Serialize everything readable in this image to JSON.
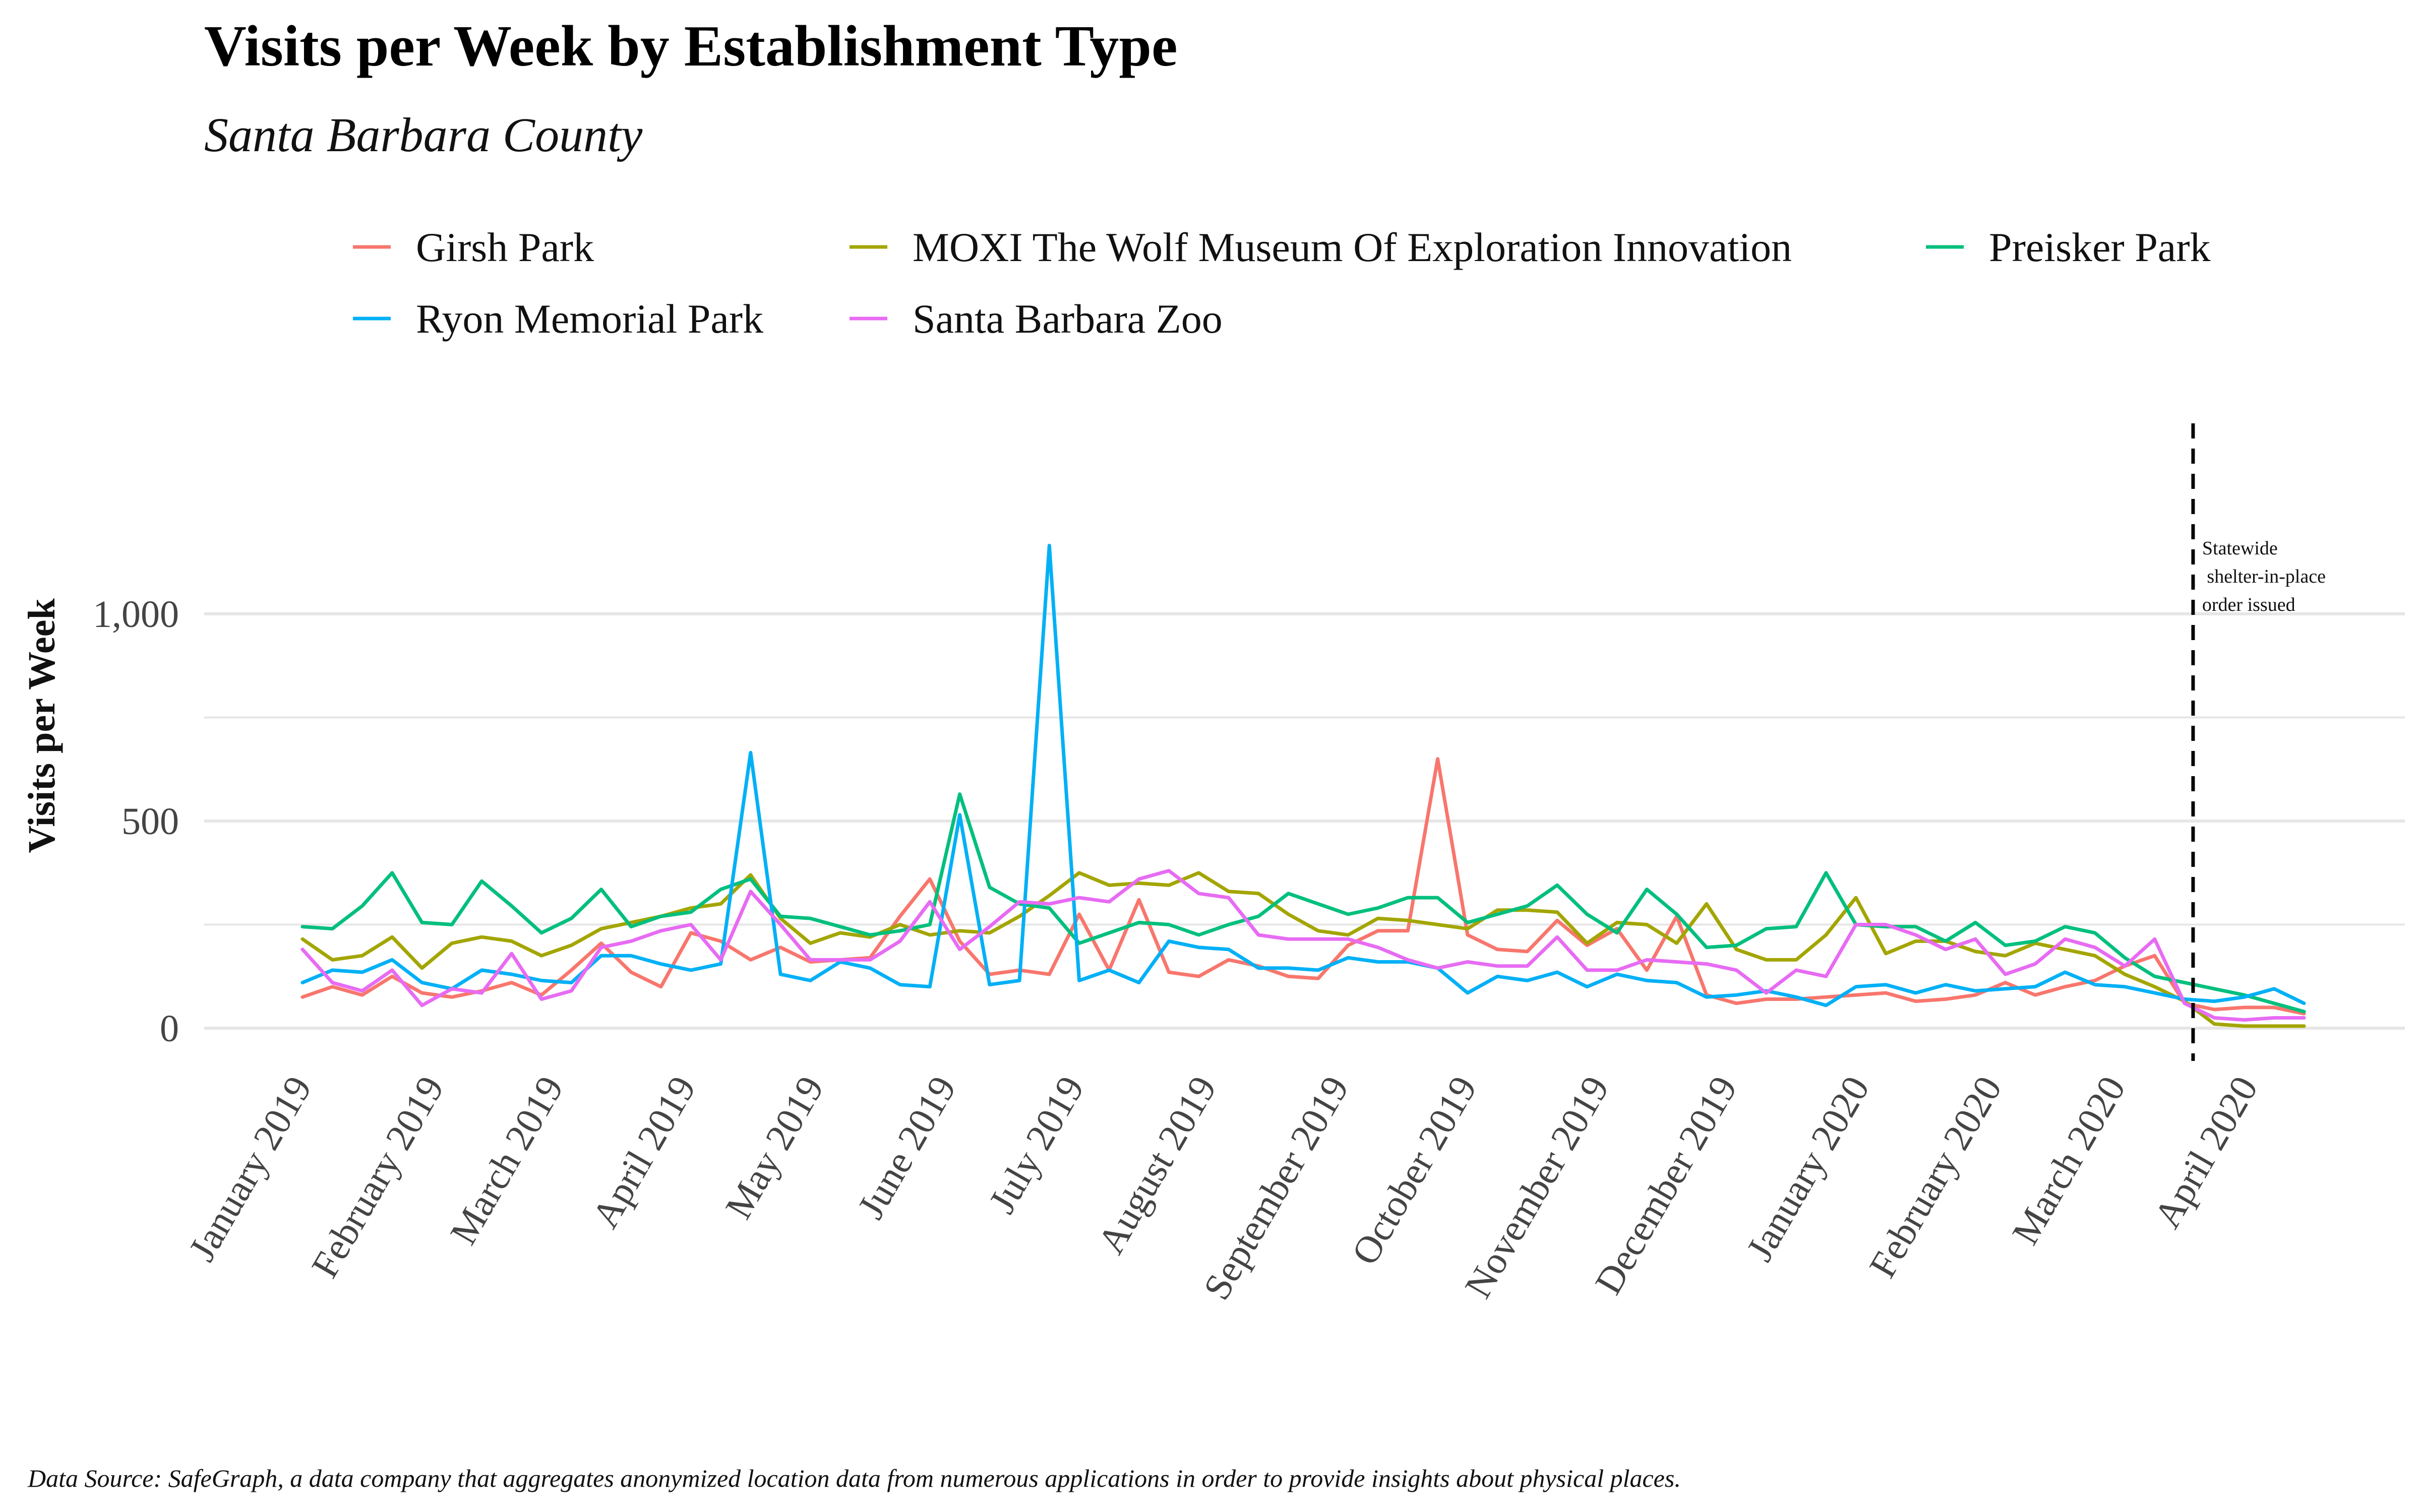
{
  "chart_data": {
    "type": "line",
    "title": "Visits per Week by Establishment Type",
    "subtitle": "Santa Barbara County",
    "ylabel": "Visits per Week",
    "xlabel": "",
    "ylim": [
      -45,
      1240
    ],
    "yticks": [
      0,
      500,
      1000
    ],
    "ytick_labels": [
      "0",
      "500",
      "1,000"
    ],
    "grid": true,
    "legend_position": "top",
    "x_start": "2019-01-01",
    "week_count": 68,
    "month_labels": [
      "January 2019",
      "February 2019",
      "March 2019",
      "April 2019",
      "May 2019",
      "June 2019",
      "July 2019",
      "August 2019",
      "September 2019",
      "October 2019",
      "November 2019",
      "December 2019",
      "January 2020",
      "February 2020",
      "March 2020",
      "April 2020"
    ],
    "month_positions": [
      "2019-01-01",
      "2019-02-01",
      "2019-03-01",
      "2019-04-01",
      "2019-05-01",
      "2019-06-01",
      "2019-07-01",
      "2019-08-01",
      "2019-09-01",
      "2019-10-01",
      "2019-11-01",
      "2019-12-01",
      "2020-01-01",
      "2020-02-01",
      "2020-03-01",
      "2020-04-01"
    ],
    "annotation": {
      "x": "2020-03-19",
      "lines": [
        "Statewide",
        " shelter-in-place",
        "order issued"
      ]
    },
    "series": [
      {
        "name": "Girsh Park",
        "color": "#F8766D",
        "values": [
          75,
          100,
          80,
          125,
          85,
          75,
          90,
          110,
          80,
          140,
          205,
          135,
          100,
          230,
          210,
          165,
          195,
          160,
          165,
          170,
          270,
          360,
          210,
          130,
          140,
          130,
          275,
          140,
          310,
          135,
          125,
          165,
          150,
          125,
          120,
          200,
          235,
          235,
          650,
          225,
          190,
          185,
          260,
          200,
          240,
          140,
          270,
          80,
          60,
          70,
          70,
          75,
          80,
          85,
          65,
          70,
          80,
          110,
          80,
          100,
          115,
          150,
          175,
          60,
          45,
          50,
          50,
          35
        ]
      },
      {
        "name": "MOXI The Wolf Museum Of Exploration Innovation",
        "color": "#A3A500",
        "values": [
          215,
          165,
          175,
          220,
          145,
          205,
          220,
          210,
          175,
          200,
          240,
          255,
          270,
          290,
          300,
          370,
          265,
          205,
          230,
          220,
          250,
          225,
          235,
          230,
          270,
          320,
          375,
          345,
          350,
          345,
          375,
          330,
          325,
          275,
          235,
          225,
          265,
          260,
          250,
          240,
          285,
          285,
          280,
          205,
          255,
          250,
          205,
          300,
          190,
          165,
          165,
          225,
          315,
          180,
          210,
          210,
          185,
          175,
          205,
          190,
          175,
          130,
          100,
          65,
          10,
          5,
          5,
          5
        ]
      },
      {
        "name": "Preisker Park",
        "color": "#00BF7D",
        "values": [
          245,
          240,
          295,
          375,
          255,
          250,
          355,
          295,
          230,
          265,
          335,
          245,
          270,
          280,
          335,
          360,
          270,
          265,
          245,
          225,
          235,
          250,
          565,
          340,
          300,
          290,
          205,
          230,
          255,
          250,
          225,
          250,
          270,
          325,
          300,
          275,
          290,
          315,
          315,
          255,
          275,
          295,
          345,
          275,
          230,
          335,
          275,
          195,
          200,
          240,
          245,
          375,
          250,
          245,
          245,
          210,
          255,
          200,
          210,
          245,
          230,
          170,
          125,
          110,
          95,
          80,
          60,
          40
        ]
      },
      {
        "name": "Ryon Memorial Park",
        "color": "#00B0F6",
        "values": [
          110,
          140,
          135,
          165,
          110,
          95,
          140,
          130,
          115,
          110,
          175,
          175,
          155,
          140,
          155,
          665,
          130,
          115,
          160,
          145,
          105,
          100,
          515,
          105,
          115,
          1165,
          115,
          140,
          110,
          210,
          195,
          190,
          145,
          145,
          140,
          170,
          160,
          160,
          145,
          85,
          125,
          115,
          135,
          100,
          130,
          115,
          110,
          75,
          80,
          90,
          75,
          55,
          100,
          105,
          85,
          105,
          90,
          95,
          100,
          135,
          105,
          100,
          85,
          70,
          65,
          75,
          95,
          60
        ]
      },
      {
        "name": "Santa Barbara Zoo",
        "color": "#E76BF3",
        "values": [
          190,
          110,
          90,
          140,
          55,
          95,
          85,
          180,
          70,
          90,
          195,
          210,
          235,
          250,
          165,
          330,
          250,
          165,
          165,
          165,
          210,
          305,
          190,
          245,
          305,
          300,
          315,
          305,
          360,
          380,
          325,
          315,
          225,
          215,
          215,
          215,
          195,
          165,
          145,
          160,
          150,
          150,
          220,
          140,
          140,
          165,
          160,
          155,
          140,
          85,
          140,
          125,
          250,
          250,
          225,
          190,
          215,
          130,
          155,
          215,
          195,
          150,
          215,
          60,
          25,
          20,
          25,
          25
        ]
      }
    ],
    "caption": "Data Source: SafeGraph, a data company that aggregates anonymized location data from numerous applications in order to provide insights about physical places."
  }
}
